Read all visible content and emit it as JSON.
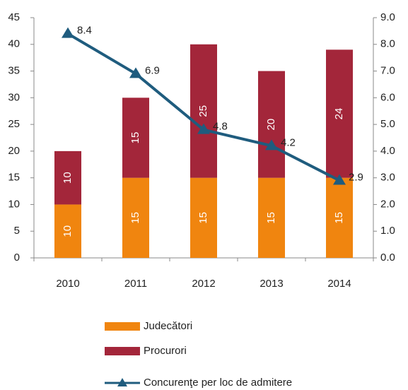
{
  "chart_data": {
    "type": "bar",
    "categories": [
      "2010",
      "2011",
      "2012",
      "2013",
      "2014"
    ],
    "stacked": true,
    "series": [
      {
        "name": "Judecători",
        "color": "#f0850f",
        "values": [
          10,
          15,
          15,
          15,
          15
        ]
      },
      {
        "name": "Procurori",
        "color": "#a3263a",
        "values": [
          10,
          15,
          25,
          20,
          24
        ]
      },
      {
        "name": "Concurenţe per loc de admitere",
        "color": "#1f5c7e",
        "type": "line",
        "axis": "y2",
        "marker": "triangle",
        "values": [
          8.4,
          6.9,
          4.8,
          4.2,
          2.9
        ]
      }
    ],
    "ylim": [
      0,
      45
    ],
    "yticks": [
      0,
      5,
      10,
      15,
      20,
      25,
      30,
      35,
      40,
      45
    ],
    "y2lim": [
      0,
      9
    ],
    "y2ticks": [
      {
        "value": 0,
        "label": "0.0"
      },
      {
        "value": 1,
        "label": "1.0"
      },
      {
        "value": 2,
        "label": "2.0"
      },
      {
        "value": 3,
        "label": "3.0"
      },
      {
        "value": 4,
        "label": "4.0"
      },
      {
        "value": 5,
        "label": "5.0"
      },
      {
        "value": 6,
        "label": "6.0"
      },
      {
        "value": 7,
        "label": "7.0"
      },
      {
        "value": 8,
        "label": "8.0"
      },
      {
        "value": 9,
        "label": "9.0"
      }
    ],
    "grid": false,
    "legend": "bottom"
  }
}
